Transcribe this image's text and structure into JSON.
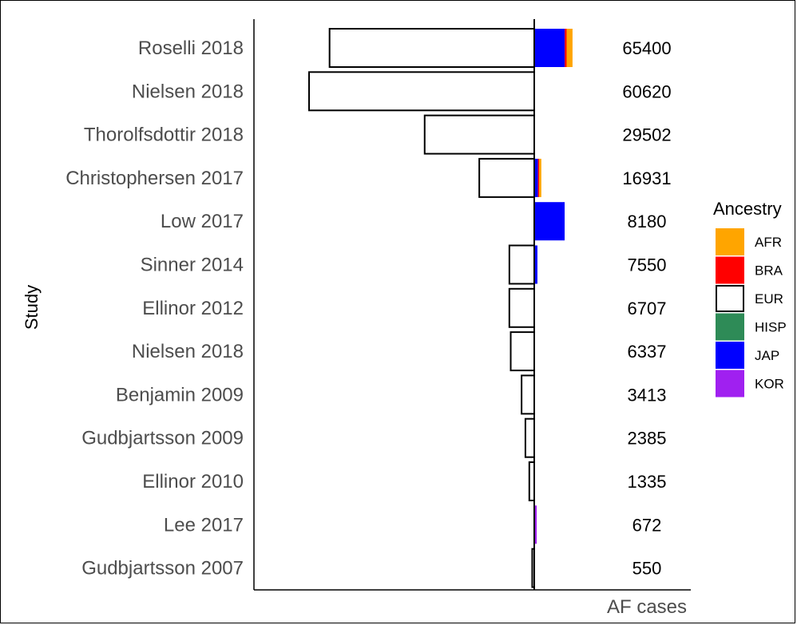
{
  "chart_data": {
    "type": "bar",
    "orientation": "horizontal",
    "ylabel": "Study",
    "xlabel": "AF cases",
    "legend": {
      "title": "Ancestry",
      "position": "right",
      "entries": [
        {
          "name": "AFR",
          "color": "#FFA500"
        },
        {
          "name": "BRA",
          "color": "#FF0000"
        },
        {
          "name": "EUR",
          "color": "#FFFFFF"
        },
        {
          "name": "HISP",
          "color": "#2E8B57"
        },
        {
          "name": "JAP",
          "color": "#0000FF"
        },
        {
          "name": "KOR",
          "color": "#A020F0"
        }
      ]
    },
    "categories": [
      "Roselli 2018",
      "Nielsen 2018",
      "Thorolfsdottir 2018",
      "Christophersen 2017",
      "Low 2017",
      "Sinner 2014",
      "Ellinor 2012",
      "Nielsen 2018",
      "Benjamin 2009",
      "Gudbjartsson 2009",
      "Ellinor 2010",
      "Lee 2017",
      "Gudbjartsson 2007"
    ],
    "totals": [
      "65400",
      "60620",
      "29502",
      "16931",
      "8180",
      "7550",
      "6707",
      "6337",
      "3413",
      "2385",
      "1335",
      "672",
      "550"
    ],
    "series": [
      {
        "name": "EUR",
        "values": [
          55100,
          60620,
          29502,
          14800,
          0,
          6700,
          6707,
          6337,
          3413,
          2385,
          1335,
          0,
          550
        ]
      },
      {
        "name": "JAP",
        "values": [
          8200,
          0,
          0,
          1000,
          8180,
          850,
          0,
          0,
          0,
          0,
          0,
          0,
          0
        ]
      },
      {
        "name": "BRA",
        "values": [
          500,
          0,
          0,
          300,
          0,
          0,
          0,
          0,
          0,
          0,
          0,
          0,
          0
        ]
      },
      {
        "name": "AFR",
        "values": [
          1600,
          0,
          0,
          600,
          0,
          0,
          0,
          0,
          0,
          0,
          0,
          0,
          0
        ]
      },
      {
        "name": "KOR",
        "values": [
          0,
          0,
          0,
          0,
          0,
          0,
          0,
          0,
          0,
          0,
          0,
          672,
          0
        ]
      }
    ],
    "layout_note": "EUR extends left of zero; other ancestries extend right",
    "grid": false
  }
}
